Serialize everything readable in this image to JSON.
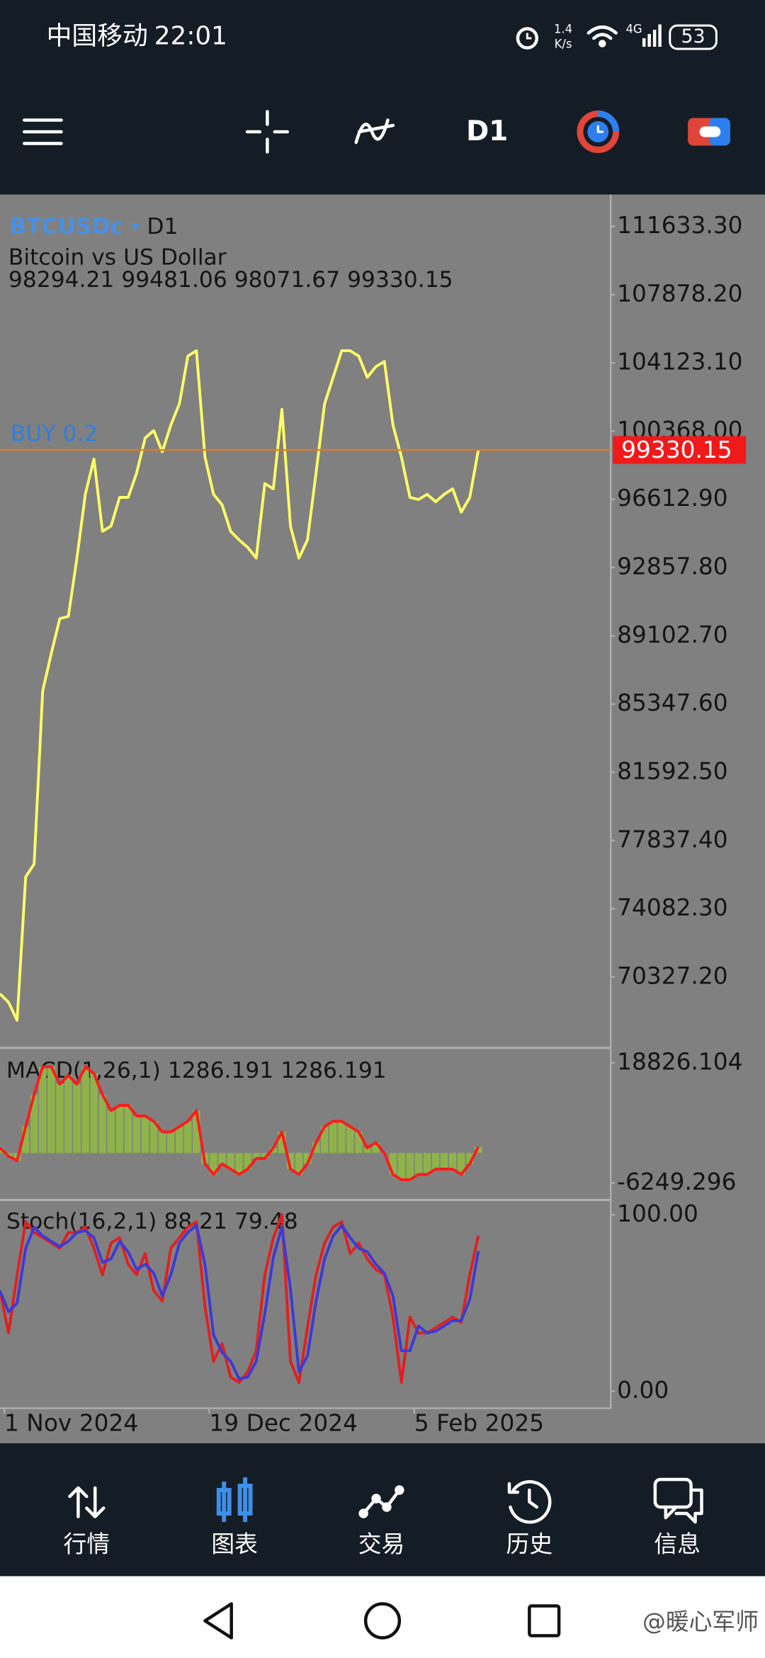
{
  "status_bar": {
    "carrier": "中国移动",
    "time": "22:01",
    "net_speed": "1.4",
    "net_speed_unit": "K/s",
    "network": "4G",
    "battery": "53"
  },
  "toolbar": {
    "timeframe": "D1"
  },
  "chart_data": [
    {
      "type": "line",
      "symbol": "BTCUSDc",
      "timeframe": "D1",
      "description": "Bitcoin vs US Dollar",
      "ohlc": "98294.21 99481.06 98071.67 99330.15",
      "order_label": "BUY 0.2",
      "current_price": 99330.15,
      "color": "#ffff66",
      "xlim": [
        "2024-10-31",
        "2025-03-23"
      ],
      "xticks": [
        {
          "value": "2024-11-01",
          "label": "1 Nov 2024"
        },
        {
          "value": "2024-12-19",
          "label": "19 Dec 2024"
        },
        {
          "value": "2025-02-05",
          "label": "5 Feb 2025"
        }
      ],
      "x": [
        "2024-10-31",
        "2024-11-02",
        "2024-11-04",
        "2024-11-06",
        "2024-11-08",
        "2024-11-10",
        "2024-11-12",
        "2024-11-14",
        "2024-11-16",
        "2024-11-18",
        "2024-11-20",
        "2024-11-22",
        "2024-11-24",
        "2024-11-26",
        "2024-11-28",
        "2024-11-30",
        "2024-12-02",
        "2024-12-04",
        "2024-12-06",
        "2024-12-08",
        "2024-12-10",
        "2024-12-12",
        "2024-12-14",
        "2024-12-16",
        "2024-12-18",
        "2024-12-20",
        "2024-12-22",
        "2024-12-24",
        "2024-12-26",
        "2024-12-28",
        "2024-12-30",
        "2025-01-01",
        "2025-01-03",
        "2025-01-05",
        "2025-01-07",
        "2025-01-09",
        "2025-01-11",
        "2025-01-13",
        "2025-01-15",
        "2025-01-17",
        "2025-01-19",
        "2025-01-21",
        "2025-01-23",
        "2025-01-25",
        "2025-01-27",
        "2025-01-29",
        "2025-01-31",
        "2025-02-02",
        "2025-02-04",
        "2025-02-06",
        "2025-02-08",
        "2025-02-10",
        "2025-02-12",
        "2025-02-14",
        "2025-02-16",
        "2025-02-18",
        "2025-02-20"
      ],
      "values": [
        69400,
        68930,
        67940,
        75840,
        76540,
        86070,
        88120,
        90050,
        90170,
        93380,
        96900,
        98830,
        94850,
        95140,
        96720,
        96720,
        98060,
        99990,
        100400,
        99230,
        100700,
        101870,
        104500,
        104790,
        98940,
        96890,
        96310,
        94850,
        94380,
        93970,
        93380,
        97480,
        97190,
        101570,
        95140,
        93380,
        94380,
        98060,
        101870,
        103330,
        104790,
        104790,
        104500,
        103330,
        103910,
        104200,
        100700,
        98940,
        96720,
        96600,
        96890,
        96480,
        96890,
        97190,
        95900,
        96720,
        99330.15
      ],
      "ylim": [
        66480,
        113388
      ],
      "yticks": [
        {
          "value": 111633.3,
          "label": "111633.30"
        },
        {
          "value": 107878.2,
          "label": "107878.20"
        },
        {
          "value": 104123.1,
          "label": "104123.10"
        },
        {
          "value": 100368,
          "label": "100368.00"
        },
        {
          "value": 96612.9,
          "label": "96612.90"
        },
        {
          "value": 92857.8,
          "label": "92857.80"
        },
        {
          "value": 89102.7,
          "label": "89102.70"
        },
        {
          "value": 85347.6,
          "label": "85347.60"
        },
        {
          "value": 81592.5,
          "label": "81592.50"
        },
        {
          "value": 77837.4,
          "label": "77837.40"
        },
        {
          "value": 74082.3,
          "label": "74082.30"
        },
        {
          "value": 70327.2,
          "label": "70327.20"
        }
      ]
    },
    {
      "type": "macd",
      "label": "MACD(1,26,1) 1286.191 1286.191",
      "bar_color": "#8fb34a",
      "line_color": "#ff1a1a",
      "values": [
        1074,
        -701,
        -1589,
        5512,
        12169,
        18000,
        18000,
        14388,
        16163,
        14388,
        18000,
        16607,
        12169,
        8840,
        9950,
        9950,
        7731,
        7731,
        6622,
        4403,
        4403,
        5512,
        6622,
        8840,
        -2254,
        -4473,
        -2254,
        -3364,
        -4473,
        -3364,
        -1145,
        -1145,
        1074,
        4403,
        -3364,
        -4473,
        -2254,
        2184,
        5512,
        6622,
        6622,
        5512,
        4403,
        1074,
        2184,
        -35,
        -4473,
        -5583,
        -5583,
        -4473,
        -4473,
        -3364,
        -3364,
        -3364,
        -4473,
        -2254,
        1286.191
      ],
      "ylim": [
        -9578,
        21489
      ],
      "yticks": [
        18826.104,
        -6249.296
      ]
    },
    {
      "type": "line",
      "label": "Stoch(16,2,1) 88.21 79.48",
      "series": [
        {
          "color": "#e02020",
          "values": [
            57,
            33,
            66,
            96,
            90,
            87,
            84,
            81,
            90,
            90,
            93,
            81,
            66,
            84,
            87,
            72,
            66,
            78,
            57,
            51,
            81,
            87,
            93,
            96,
            48,
            17,
            27,
            8,
            5,
            11,
            23,
            66,
            87,
            100,
            17,
            5,
            36,
            66,
            84,
            93,
            96,
            78,
            84,
            75,
            69,
            66,
            42,
            5,
            42,
            33,
            33,
            36,
            39,
            42,
            39,
            66,
            88.21
          ]
        },
        {
          "color": "#3a3ad8",
          "values": [
            57,
            45,
            50,
            81,
            93,
            88,
            85,
            82,
            85,
            90,
            91,
            87,
            73,
            75,
            85,
            79,
            69,
            72,
            67,
            54,
            66,
            84,
            90,
            94,
            72,
            32,
            22,
            17,
            7,
            8,
            17,
            44,
            76,
            93,
            58,
            11,
            20,
            51,
            75,
            88,
            94,
            87,
            81,
            79,
            72,
            67,
            54,
            23,
            23,
            37,
            33,
            34,
            37,
            40,
            40,
            52,
            79.48
          ]
        }
      ],
      "ylim": [
        -9.6,
        107.8
      ],
      "yticks": [
        {
          "value": 100,
          "label": "100.00"
        },
        {
          "value": 0,
          "label": "0.00"
        }
      ]
    }
  ],
  "nav": {
    "items": [
      "行情",
      "图表",
      "交易",
      "历史",
      "信息"
    ],
    "active": 1
  },
  "watermark": "@暖心军师"
}
